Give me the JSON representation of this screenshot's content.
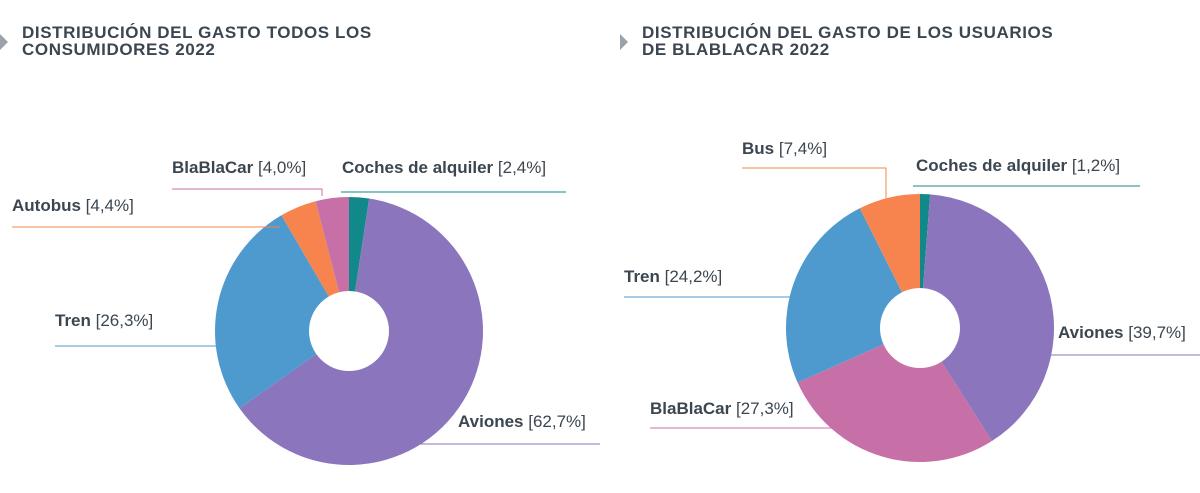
{
  "colors": {
    "aviones": "#8b76bd",
    "tren": "#4e99cd",
    "autobus": "#f7844f",
    "blablacar": "#c770a8",
    "alquiler": "#11888a",
    "title_marker": "#9aa3ab"
  },
  "chart_data": [
    {
      "type": "pie",
      "title": "DISTRIBUCIÓN DEL GASTO TODOS LOS CONSUMIDORES 2022",
      "slices": [
        {
          "name": "Coches de alquiler",
          "value": 2.4,
          "value_text": "[2,4%]",
          "color_key": "alquiler"
        },
        {
          "name": "Aviones",
          "value": 62.7,
          "value_text": "[62,7%]",
          "color_key": "aviones"
        },
        {
          "name": "Tren",
          "value": 26.3,
          "value_text": "[26,3%]",
          "color_key": "tren"
        },
        {
          "name": "Autobus",
          "value": 4.4,
          "value_text": "[4,4%]",
          "color_key": "autobus"
        },
        {
          "name": "BlaBlaCar",
          "value": 4.0,
          "value_text": "[4,0%]",
          "color_key": "blablacar"
        }
      ]
    },
    {
      "type": "pie",
      "title": "DISTRIBUCIÓN DEL GASTO DE LOS USUARIOS DE BLABLACAR 2022",
      "slices": [
        {
          "name": "Coches de alquiler",
          "value": 1.2,
          "value_text": "[1,2%]",
          "color_key": "alquiler"
        },
        {
          "name": "Aviones",
          "value": 39.7,
          "value_text": "[39,7%]",
          "color_key": "aviones"
        },
        {
          "name": "BlaBlaCar",
          "value": 27.3,
          "value_text": "[27,3%]",
          "color_key": "blablacar"
        },
        {
          "name": "Tren",
          "value": 24.2,
          "value_text": "[24,2%]",
          "color_key": "tren"
        },
        {
          "name": "Bus",
          "value": 7.4,
          "value_text": "[7,4%]",
          "color_key": "autobus"
        }
      ]
    }
  ]
}
